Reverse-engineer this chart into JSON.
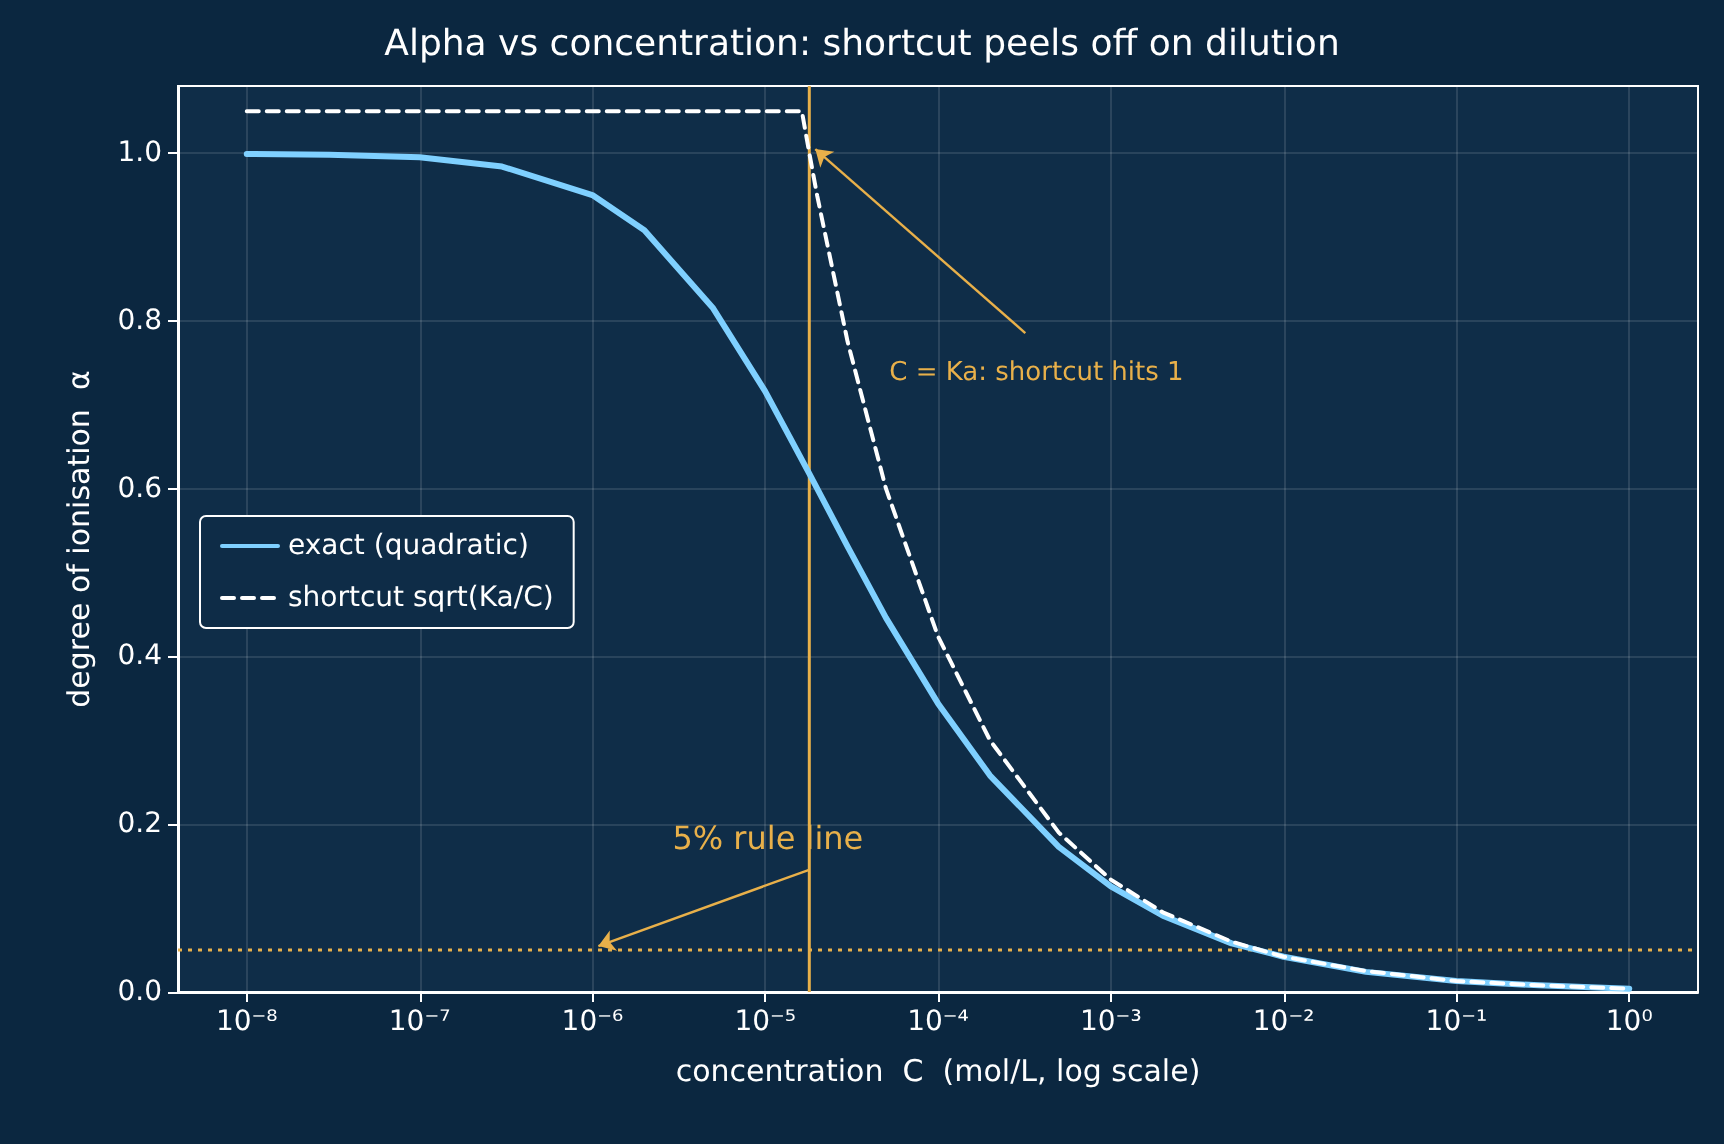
{
  "chart_data": {
    "type": "line",
    "title": "Alpha vs concentration: shortcut peels off on dilution",
    "xlabel": "concentration  C  (mol/L, log scale)",
    "ylabel": "degree of ionisation  α",
    "log": "x",
    "xlim": [
      4e-09,
      2.5
    ],
    "xticks": [
      {
        "value": 1e-08,
        "label": "10⁻⁸"
      },
      {
        "value": 1e-07,
        "label": "10⁻⁷"
      },
      {
        "value": 1e-06,
        "label": "10⁻⁶"
      },
      {
        "value": 1e-05,
        "label": "10⁻⁵"
      },
      {
        "value": 0.0001,
        "label": "10⁻⁴"
      },
      {
        "value": 0.001,
        "label": "10⁻³"
      },
      {
        "value": 0.01,
        "label": "10⁻²"
      },
      {
        "value": 0.1,
        "label": "10⁻¹"
      },
      {
        "value": 1,
        "label": "10⁰"
      }
    ],
    "ylim": [
      0,
      1.08
    ],
    "yticks": [
      {
        "value": 0,
        "label": "0.0"
      },
      {
        "value": 0.2,
        "label": "0.2"
      },
      {
        "value": 0.4,
        "label": "0.4"
      },
      {
        "value": 0.6,
        "label": "0.6"
      },
      {
        "value": 0.8,
        "label": "0.8"
      },
      {
        "value": 1,
        "label": "1.0"
      }
    ],
    "grid": true,
    "legend": "left",
    "marker": "none",
    "series": [
      {
        "name": "exact (quadratic)",
        "color": "#7fd0ff",
        "line_style": "solid",
        "x": [
          1e-08,
          3e-08,
          1e-07,
          3e-07,
          1e-06,
          2e-06,
          5e-06,
          1e-05,
          1.8e-05,
          3e-05,
          5e-05,
          0.0001,
          0.0002,
          0.0005,
          0.001,
          0.002,
          0.005,
          0.01,
          0.03,
          0.1,
          0.3,
          1
        ],
        "values": [
          0.999,
          0.998,
          0.995,
          0.984,
          0.95,
          0.908,
          0.815,
          0.716,
          0.618,
          0.531,
          0.446,
          0.344,
          0.258,
          0.173,
          0.126,
          0.091,
          0.058,
          0.042,
          0.024,
          0.013,
          0.008,
          0.004
        ]
      },
      {
        "name": "shortcut sqrt(Ka/C)",
        "color": "#ffffff",
        "line_style": "dashed",
        "x": [
          1e-08,
          1.63e-05,
          1.8e-05,
          2e-05,
          3e-05,
          5e-05,
          0.0001,
          0.0002,
          0.0005,
          0.001,
          0.002,
          0.005,
          0.01,
          0.03,
          0.1,
          0.3,
          1
        ],
        "values": [
          1.05,
          1.05,
          1.0,
          0.949,
          0.775,
          0.6,
          0.424,
          0.3,
          0.19,
          0.134,
          0.095,
          0.06,
          0.042,
          0.025,
          0.013,
          0.008,
          0.004
        ]
      }
    ],
    "ref_lines": [
      {
        "axis": "x",
        "value": 1.8e-05,
        "color": "#e8b04a",
        "line_style": "solid"
      },
      {
        "axis": "y",
        "value": 0.05,
        "color": "#e8b04a",
        "line_style": "dotted"
      }
    ],
    "annotations": [
      {
        "text": "C = Ka: shortcut hits 1",
        "x": 1.8e-05,
        "y": 1.0
      },
      {
        "text": "5% rule line",
        "x": 1e-06,
        "y": 0.05
      }
    ]
  }
}
